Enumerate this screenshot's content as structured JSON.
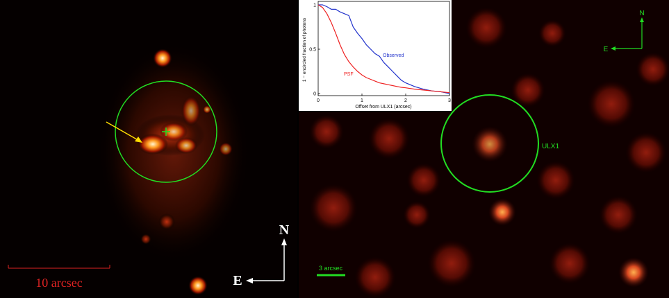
{
  "left_panel": {
    "scale_label": "10 arcsec",
    "compass": {
      "north": "N",
      "east": "E"
    }
  },
  "right_panel": {
    "source_label": "ULX1",
    "scale_label": "3 arcsec",
    "compass": {
      "north": "N",
      "east": "E"
    }
  },
  "chart_data": {
    "type": "line",
    "xlabel": "Offset from ULX1 (arcsec)",
    "ylabel": "1 − encircled fraction of photons",
    "x": [
      0,
      0.1,
      0.2,
      0.3,
      0.4,
      0.5,
      0.6,
      0.7,
      0.8,
      0.9,
      1.0,
      1.1,
      1.2,
      1.3,
      1.4,
      1.5,
      1.6,
      1.7,
      1.8,
      1.9,
      2.0,
      2.2,
      2.4,
      2.6,
      2.8,
      3.0
    ],
    "series": [
      {
        "name": "Observed",
        "color": "#2233cc",
        "values": [
          1,
          1,
          0.98,
          0.95,
          0.95,
          0.92,
          0.9,
          0.88,
          0.75,
          0.68,
          0.62,
          0.55,
          0.5,
          0.45,
          0.42,
          0.35,
          0.3,
          0.25,
          0.2,
          0.15,
          0.12,
          0.08,
          0.05,
          0.03,
          0.02,
          0
        ]
      },
      {
        "name": "PSF",
        "color": "#ee2222",
        "values": [
          1,
          0.97,
          0.9,
          0.8,
          0.68,
          0.55,
          0.44,
          0.36,
          0.3,
          0.25,
          0.21,
          0.18,
          0.16,
          0.14,
          0.12,
          0.11,
          0.1,
          0.09,
          0.08,
          0.07,
          0.065,
          0.05,
          0.04,
          0.03,
          0.02,
          0.01
        ]
      }
    ],
    "xlim": [
      0,
      3
    ],
    "xticks": [
      0,
      1,
      2,
      3
    ],
    "ylim": [
      0,
      1
    ],
    "yticks": [
      0,
      0.5,
      1
    ]
  }
}
